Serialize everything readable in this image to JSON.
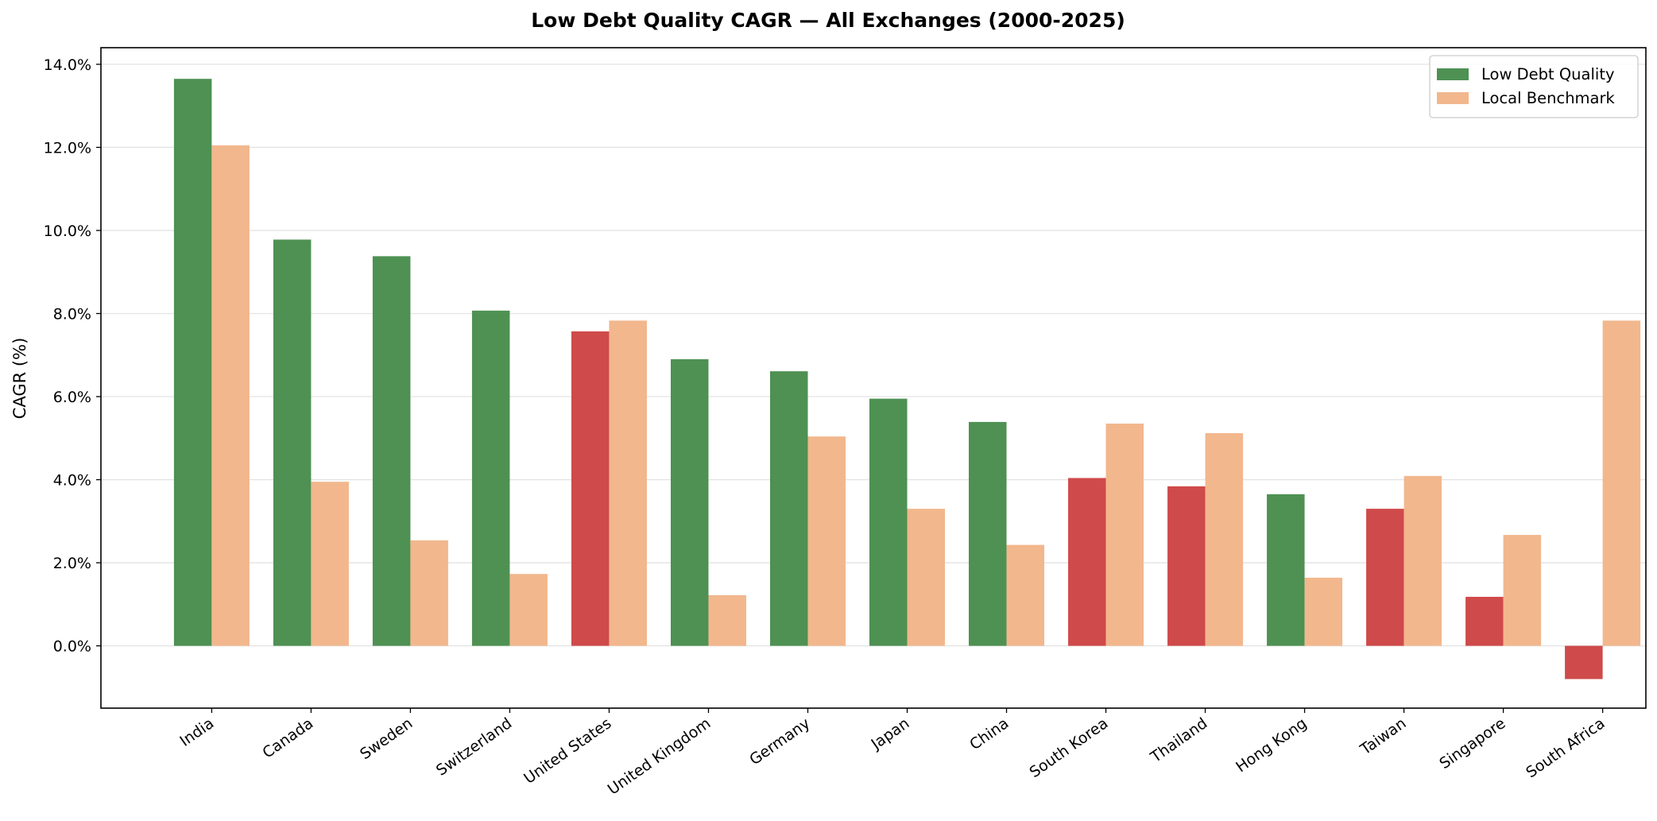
{
  "chart_data": {
    "type": "bar",
    "title": "Low Debt Quality CAGR — All Exchanges (2000-2025)",
    "xlabel": "",
    "ylabel": "CAGR (%)",
    "ylim": [
      -1.5,
      14.4
    ],
    "yticks": [
      0,
      2,
      4,
      6,
      8,
      10,
      12,
      14
    ],
    "ytick_format": "%.1f%",
    "grid": "horizontal",
    "legend_position": "top-right",
    "categories": [
      "India",
      "Canada",
      "Sweden",
      "Switzerland",
      "United States",
      "United Kingdom",
      "Germany",
      "Japan",
      "China",
      "South Korea",
      "Thailand",
      "Hong Kong",
      "Taiwan",
      "Singapore",
      "South Africa"
    ],
    "series": [
      {
        "name": "Low Debt Quality",
        "color": "#4e9153",
        "underperform_color": "#cf4a4a",
        "values": [
          13.65,
          9.78,
          9.38,
          8.07,
          7.57,
          6.9,
          6.61,
          5.95,
          5.39,
          4.04,
          3.84,
          3.65,
          3.3,
          1.18,
          -0.8
        ]
      },
      {
        "name": "Local Benchmark",
        "color": "#f2b78d",
        "values": [
          12.05,
          3.95,
          2.54,
          1.73,
          7.83,
          1.22,
          5.04,
          3.3,
          2.43,
          5.35,
          5.12,
          1.64,
          4.09,
          2.67,
          7.83
        ]
      }
    ]
  }
}
